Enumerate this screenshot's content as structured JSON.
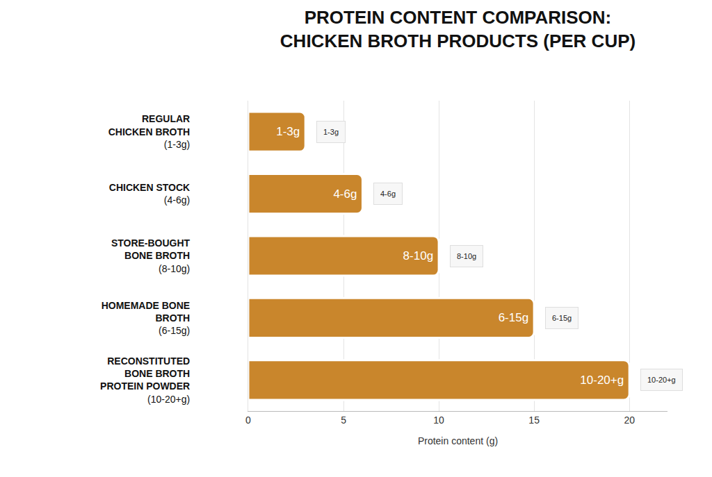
{
  "chart_data": {
    "type": "bar",
    "title": "PROTEIN CONTENT COMPARISON: CHICKEN BROTH PRODUCTS (PER CUP)",
    "orientation": "horizontal",
    "categories": [
      "REGULAR CHICKEN BROTH (1-3g)",
      "CHICKEN STOCK (4-6g)",
      "STORE-BOUGHT BONE BROTH (8-10g)",
      "HOMEMADE BONE BROTH (6-15g)",
      "RECONSTITUTED BONE BROTH PROTEIN POWDER (10-20+g)"
    ],
    "values": [
      3,
      6,
      10,
      15,
      20
    ],
    "value_labels": [
      "1-3g",
      "4-6g",
      "8-10g",
      "6-15g",
      "10-20+g"
    ],
    "data_labels": true,
    "color": "#c9862c",
    "x_label": "Protein content (g)",
    "xlim": [
      0,
      22
    ],
    "xticks": [
      0,
      5,
      10,
      15,
      20
    ],
    "grid": true
  }
}
